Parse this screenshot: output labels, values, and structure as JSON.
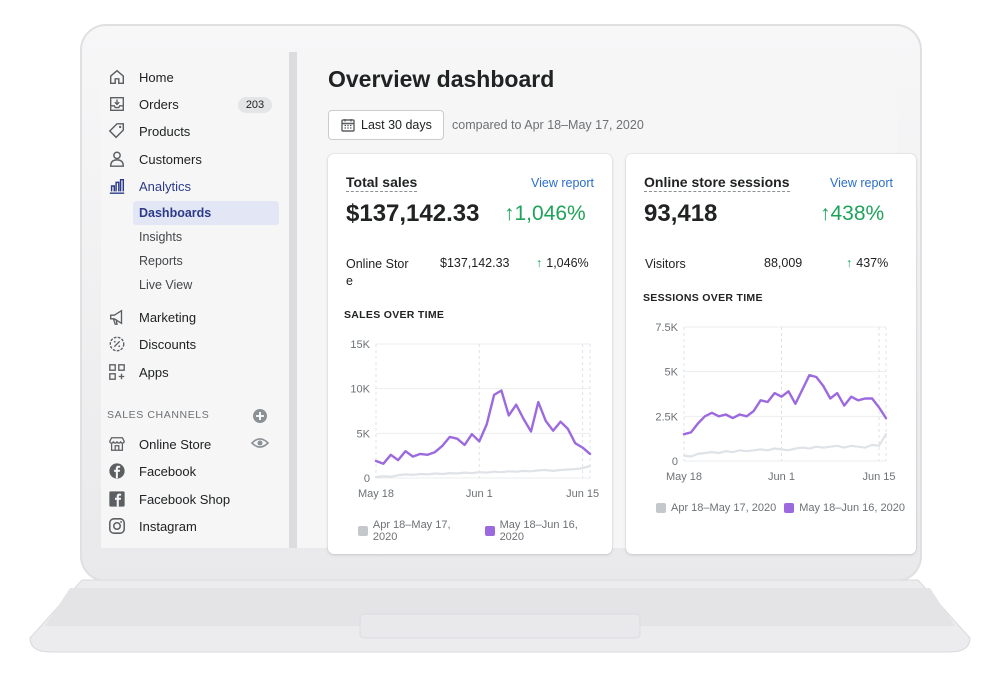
{
  "sidebar": {
    "nav": [
      {
        "label": "Home",
        "icon": "home-icon"
      },
      {
        "label": "Orders",
        "icon": "orders-icon",
        "badge": "203"
      },
      {
        "label": "Products",
        "icon": "tag-icon"
      },
      {
        "label": "Customers",
        "icon": "person-icon"
      },
      {
        "label": "Analytics",
        "icon": "analytics-icon"
      }
    ],
    "analytics_sub": [
      "Dashboards",
      "Insights",
      "Reports",
      "Live View"
    ],
    "nav2": [
      {
        "label": "Marketing",
        "icon": "megaphone-icon"
      },
      {
        "label": "Discounts",
        "icon": "discount-icon"
      },
      {
        "label": "Apps",
        "icon": "apps-icon"
      }
    ],
    "channels_title": "SALES CHANNELS",
    "channels": [
      {
        "label": "Online Store",
        "icon": "store-icon"
      },
      {
        "label": "Facebook",
        "icon": "facebook-icon"
      },
      {
        "label": "Facebook Shop",
        "icon": "facebook-shop-icon"
      },
      {
        "label": "Instagram",
        "icon": "instagram-icon"
      }
    ]
  },
  "main": {
    "title": "Overview dashboard",
    "date_button": "Last 30 days",
    "compare_text": "compared to Apr 18–May 17, 2020"
  },
  "cards": {
    "sales": {
      "title": "Total sales",
      "view_report": "View report",
      "value": "$137,142.33",
      "change": "1,046%",
      "row_label_a": "Online Stor",
      "row_label_b": "e",
      "row_value": "$137,142.33",
      "row_change": "1,046%",
      "chart_title": "SALES OVER TIME"
    },
    "sessions": {
      "title": "Online store sessions",
      "view_report": "View report",
      "value": "93,418",
      "change": "438%",
      "row_label": "Visitors",
      "row_value": "88,009",
      "row_change": "437%",
      "chart_title": "SESSIONS OVER TIME"
    }
  },
  "colors": {
    "current": "#9c6ade",
    "previous": "#dfe3e8",
    "positive": "#1ea35b",
    "link": "#2c6ecb"
  },
  "chart_data": [
    {
      "type": "line",
      "title": "SALES OVER TIME",
      "x_ticks": [
        "May 18",
        "Jun 1",
        "Jun 15"
      ],
      "y_ticks": [
        "0",
        "5K",
        "10K",
        "15K"
      ],
      "ylim": [
        0,
        15000
      ],
      "series": [
        {
          "name": "Apr 18–May 17, 2020",
          "color": "#dfe3e8",
          "values": [
            100,
            200,
            150,
            300,
            400,
            350,
            450,
            400,
            500,
            450,
            550,
            500,
            600,
            550,
            650,
            600,
            700,
            650,
            750,
            700,
            800,
            750,
            850,
            900,
            800,
            900,
            950,
            1000,
            1100,
            1350
          ]
        },
        {
          "name": "May 18–Jun 16, 2020",
          "color": "#9c6ade",
          "values": [
            1900,
            1600,
            2600,
            2000,
            3000,
            2400,
            2700,
            2600,
            2900,
            3600,
            4600,
            4400,
            3700,
            4900,
            4100,
            6000,
            9300,
            9800,
            7000,
            8200,
            6600,
            5200,
            8500,
            6400,
            5300,
            6300,
            5500,
            3900,
            3400,
            2700
          ]
        }
      ]
    },
    {
      "type": "line",
      "title": "SESSIONS OVER TIME",
      "x_ticks": [
        "May 18",
        "Jun 1",
        "Jun 15"
      ],
      "y_ticks": [
        "0",
        "2.5K",
        "5K",
        "7.5K"
      ],
      "ylim": [
        0,
        7500
      ],
      "series": [
        {
          "name": "Apr 18–May 17, 2020",
          "color": "#dfe3e8",
          "values": [
            300,
            250,
            400,
            450,
            500,
            450,
            550,
            500,
            600,
            550,
            600,
            650,
            600,
            700,
            650,
            600,
            700,
            750,
            700,
            800,
            750,
            800,
            850,
            750,
            850,
            800,
            750,
            900,
            850,
            1500
          ]
        },
        {
          "name": "May 18–Jun 16, 2020",
          "color": "#9c6ade",
          "values": [
            1500,
            1600,
            2100,
            2500,
            2700,
            2500,
            2600,
            2400,
            2600,
            2500,
            2800,
            3400,
            3300,
            3800,
            3600,
            3900,
            3200,
            4000,
            4800,
            4700,
            4200,
            3500,
            3800,
            3100,
            3600,
            3400,
            3500,
            3500,
            3000,
            2400
          ]
        }
      ]
    }
  ]
}
